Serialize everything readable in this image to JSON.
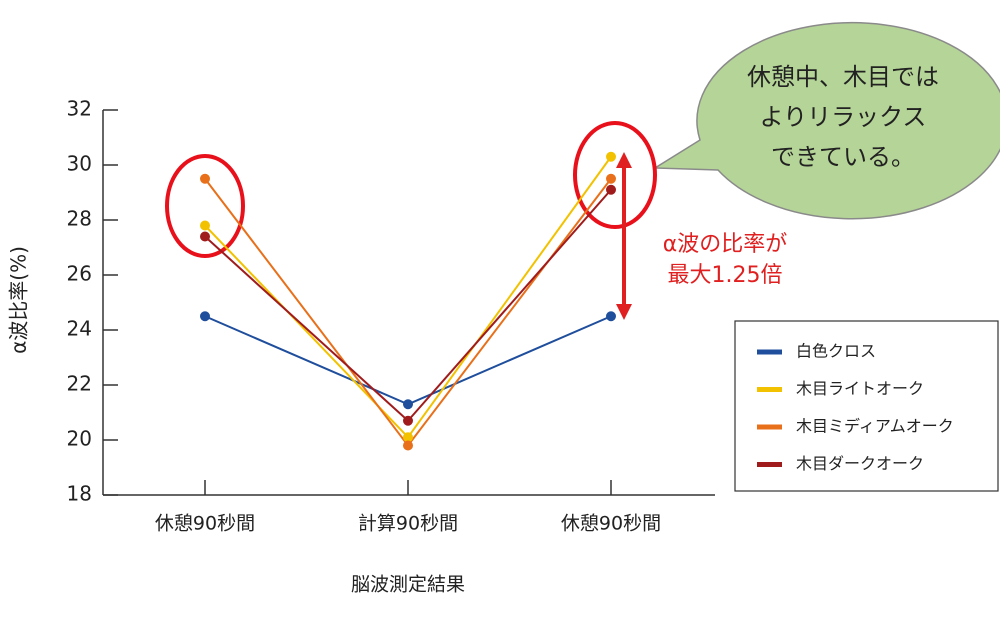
{
  "chart_data": {
    "type": "line",
    "y_label": "α波比率(%)",
    "x_label": "脳波測定結果",
    "categories": [
      "休憩90秒間",
      "計算90秒間",
      "休憩90秒間"
    ],
    "series": [
      {
        "name": "白色クロス",
        "color": "#1f4e9c",
        "values": [
          24.5,
          21.3,
          24.5
        ]
      },
      {
        "name": "木目ライトオーク",
        "color": "#f2c200",
        "values": [
          27.8,
          20.1,
          30.3
        ]
      },
      {
        "name": "木目ミディアムオーク",
        "color": "#e8701a",
        "values": [
          29.5,
          19.8,
          29.5
        ]
      },
      {
        "name": "木目ダークオーク",
        "color": "#a01c1c",
        "values": [
          27.4,
          20.7,
          29.1
        ]
      }
    ],
    "ylim": [
      18,
      32
    ],
    "yticks": [
      18,
      20,
      22,
      24,
      26,
      28,
      30,
      32
    ],
    "annotations": {
      "callout": [
        "休憩中、木目では",
        "よりリラックス",
        "できている。"
      ],
      "ratio": [
        "α波の比率が",
        "最大1.25倍"
      ]
    }
  }
}
